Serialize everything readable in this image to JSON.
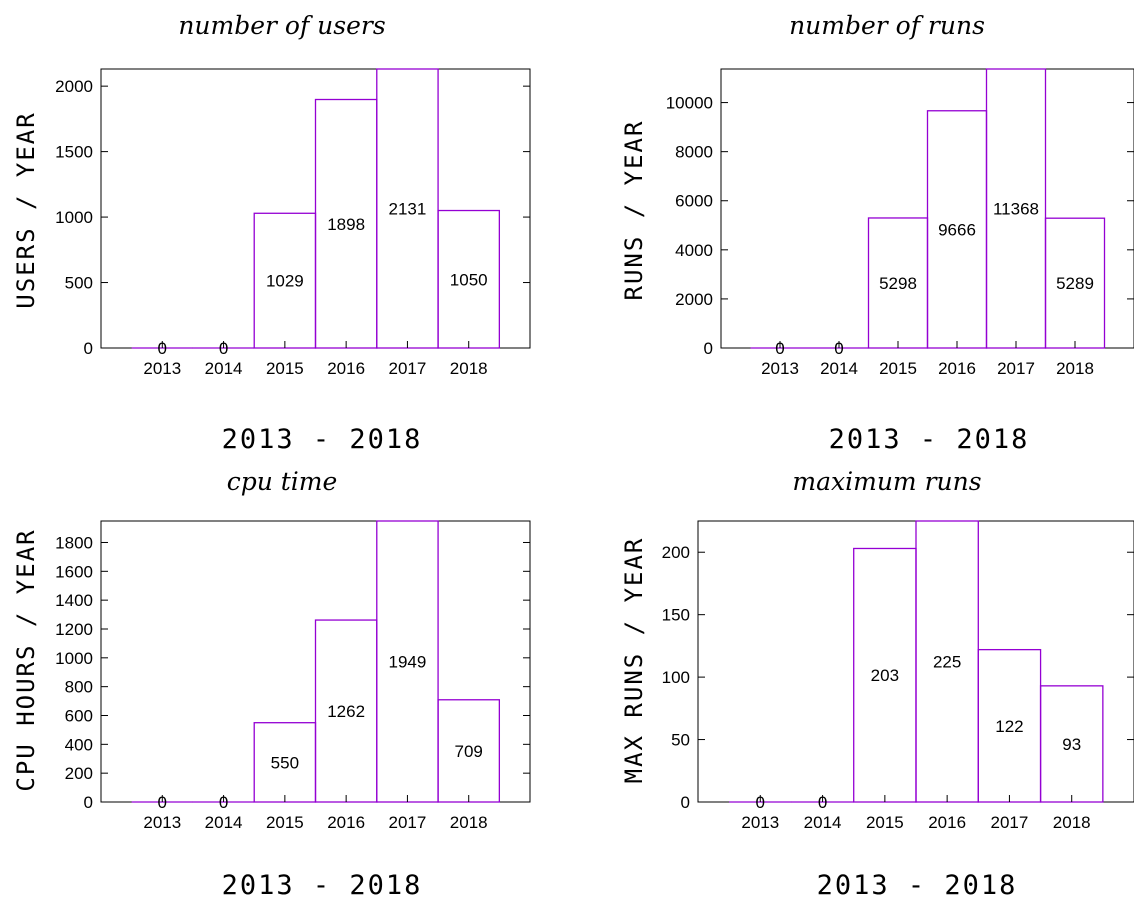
{
  "colors": {
    "bar": "#9400d3",
    "axis": "#000000",
    "background": "#ffffff"
  },
  "chart_data": [
    {
      "type": "bar",
      "title": "number of users",
      "xlabel": "2013 - 2018",
      "ylabel": "USERS / YEAR",
      "categories": [
        "2013",
        "2014",
        "2015",
        "2016",
        "2017",
        "2018"
      ],
      "values": [
        0,
        0,
        1029,
        1898,
        2131,
        1050
      ],
      "data_labels": [
        "0",
        "0",
        "1029",
        "1898",
        "2131",
        "1050"
      ],
      "ylim": [
        0,
        2131
      ],
      "yticks": [
        0,
        500,
        1000,
        1500,
        2000
      ],
      "grid": false,
      "legend": "none"
    },
    {
      "type": "bar",
      "title": "number of runs",
      "xlabel": "2013 - 2018",
      "ylabel": "RUNS / YEAR",
      "categories": [
        "2013",
        "2014",
        "2015",
        "2016",
        "2017",
        "2018"
      ],
      "values": [
        0,
        0,
        5298,
        9666,
        11368,
        5289
      ],
      "data_labels": [
        "0",
        "0",
        "5298",
        "9666",
        "11368",
        "5289"
      ],
      "ylim": [
        0,
        11368
      ],
      "yticks": [
        0,
        2000,
        4000,
        6000,
        8000,
        10000
      ],
      "grid": false,
      "legend": "none"
    },
    {
      "type": "bar",
      "title": "cpu time",
      "xlabel": "2013 - 2018",
      "ylabel": "CPU HOURS / YEAR",
      "categories": [
        "2013",
        "2014",
        "2015",
        "2016",
        "2017",
        "2018"
      ],
      "values": [
        0,
        0,
        550,
        1262,
        1949,
        709
      ],
      "data_labels": [
        "0",
        "0",
        "550",
        "1262",
        "1949",
        "709"
      ],
      "ylim": [
        0,
        1949
      ],
      "yticks": [
        0,
        200,
        400,
        600,
        800,
        1000,
        1200,
        1400,
        1600,
        1800
      ],
      "grid": false,
      "legend": "none"
    },
    {
      "type": "bar",
      "title": "maximum runs",
      "xlabel": "2013 - 2018",
      "ylabel": "MAX RUNS / YEAR",
      "categories": [
        "2013",
        "2014",
        "2015",
        "2016",
        "2017",
        "2018"
      ],
      "values": [
        0,
        0,
        203,
        225,
        122,
        93
      ],
      "data_labels": [
        "0",
        "0",
        "203",
        "225",
        "122",
        "93"
      ],
      "ylim": [
        0,
        225
      ],
      "yticks": [
        0,
        50,
        100,
        150,
        200
      ],
      "grid": false,
      "legend": "none"
    }
  ]
}
